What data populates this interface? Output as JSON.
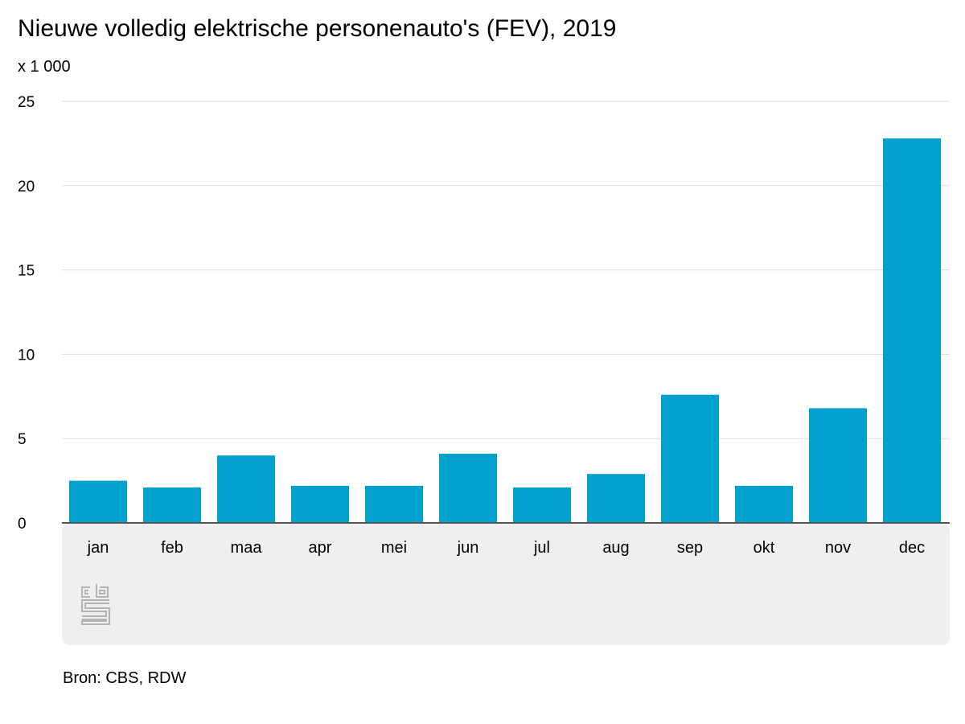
{
  "title": "Nieuwe volledig elektrische personenauto's (FEV), 2019",
  "unit_label": "x 1 000",
  "source": "Bron: CBS, RDW",
  "logo": {
    "icon": "cbs-logo-icon",
    "text": "cbs"
  },
  "colors": {
    "bar": "#00a1cd",
    "grid": "#dcdcdc",
    "axis": "#555555",
    "panel": "#efefef",
    "logo": "#b3b3b3"
  },
  "chart_data": {
    "type": "bar",
    "title": "Nieuwe volledig elektrische personenauto's (FEV), 2019",
    "xlabel": "",
    "ylabel": "x 1 000",
    "categories": [
      "jan",
      "feb",
      "maa",
      "apr",
      "mei",
      "jun",
      "jul",
      "aug",
      "sep",
      "okt",
      "nov",
      "dec"
    ],
    "values": [
      2.5,
      2.1,
      4.0,
      2.2,
      2.2,
      4.1,
      2.1,
      2.9,
      7.6,
      2.2,
      6.8,
      22.8
    ],
    "ylim": [
      0,
      25
    ],
    "yticks": [
      "0",
      "5",
      "10",
      "15",
      "20",
      "25"
    ],
    "grid": true,
    "legend": "none"
  }
}
